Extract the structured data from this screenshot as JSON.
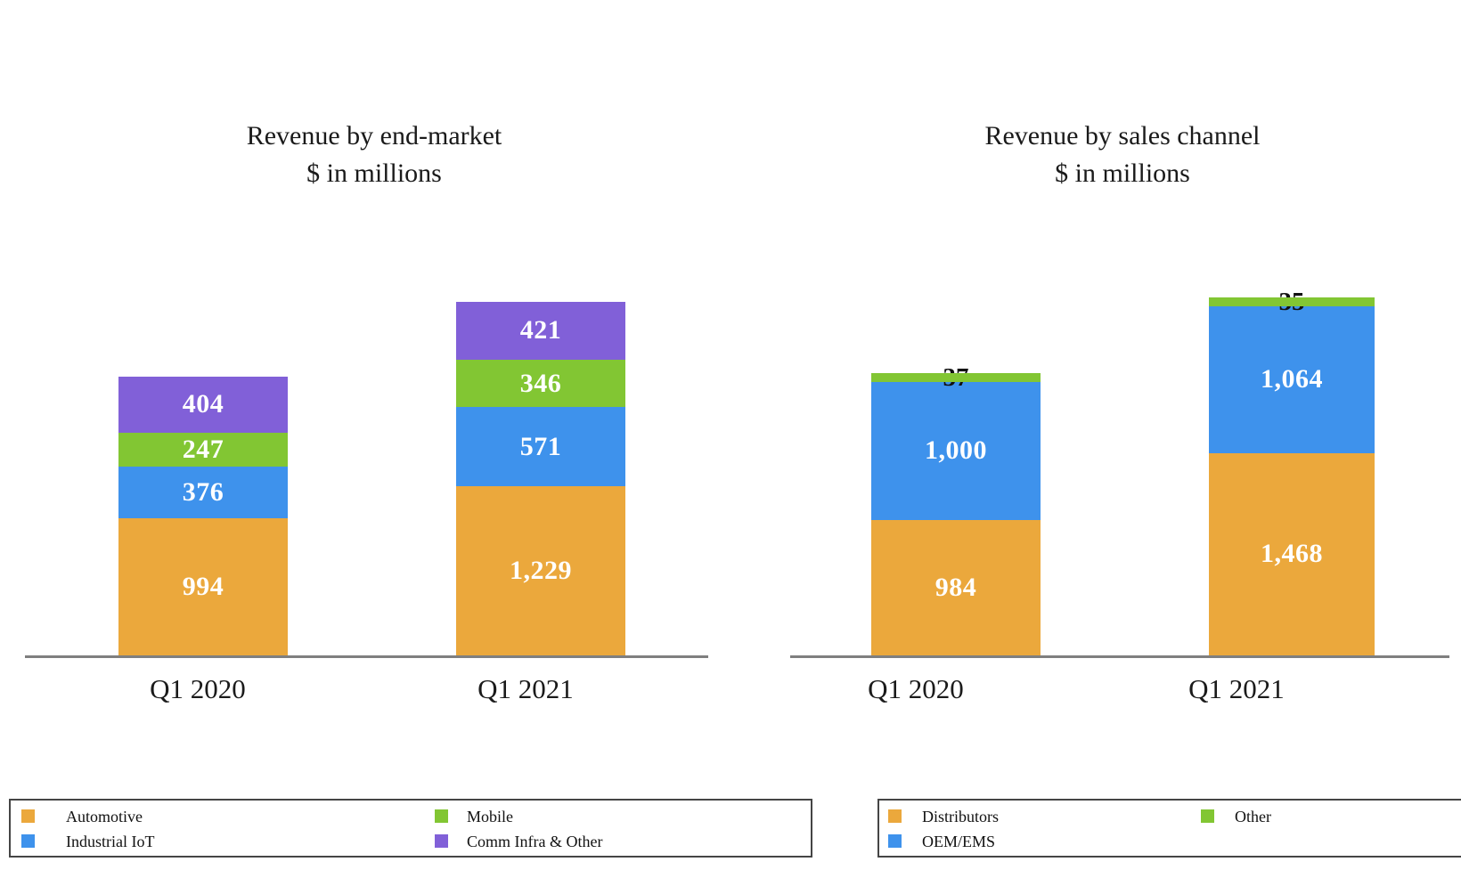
{
  "page": {
    "background_color": "#ffffff",
    "axis_color": "#7f7f7f",
    "text_color": "#1a1a1a"
  },
  "chart_data": [
    {
      "type": "bar",
      "stacked": true,
      "title": "Revenue by end-market",
      "subtitle": "$ in millions",
      "categories": [
        "Q1 2020",
        "Q1 2021"
      ],
      "totals": [
        2021,
        2567
      ],
      "legend_position": "bottom",
      "grid": false,
      "series": [
        {
          "name": "Automotive",
          "color": "#EBA83C",
          "values": [
            994,
            1229
          ],
          "labels": [
            "994",
            "1,229"
          ],
          "label_color": "#ffffff",
          "label_outside": false
        },
        {
          "name": "Industrial IoT",
          "color": "#3E92EC",
          "values": [
            376,
            571
          ],
          "labels": [
            "376",
            "571"
          ],
          "label_color": "#ffffff",
          "label_outside": false
        },
        {
          "name": "Mobile",
          "color": "#82C633",
          "values": [
            247,
            346
          ],
          "labels": [
            "247",
            "346"
          ],
          "label_color": "#ffffff",
          "label_outside": false
        },
        {
          "name": "Comm Infra & Other",
          "color": "#8160D8",
          "values": [
            404,
            421
          ],
          "labels": [
            "404",
            "421"
          ],
          "label_color": "#ffffff",
          "label_outside": false
        }
      ]
    },
    {
      "type": "bar",
      "stacked": true,
      "title": "Revenue by sales channel",
      "subtitle": "$ in millions",
      "categories": [
        "Q1 2020",
        "Q1 2021"
      ],
      "totals": [
        2021,
        2567
      ],
      "legend_position": "bottom",
      "grid": false,
      "series": [
        {
          "name": "Distributors",
          "color": "#EBA83C",
          "values": [
            984,
            1468
          ],
          "labels": [
            "984",
            "1,468"
          ],
          "label_color": "#ffffff",
          "label_outside": false
        },
        {
          "name": "OEM/EMS",
          "color": "#3E92EC",
          "values": [
            1000,
            1064
          ],
          "labels": [
            "1,000",
            "1,064"
          ],
          "label_color": "#ffffff",
          "label_outside": false
        },
        {
          "name": "Other",
          "color": "#82C633",
          "values": [
            37,
            35
          ],
          "labels": [
            "37",
            "35"
          ],
          "label_color": "#111111",
          "label_outside": true
        }
      ]
    }
  ]
}
